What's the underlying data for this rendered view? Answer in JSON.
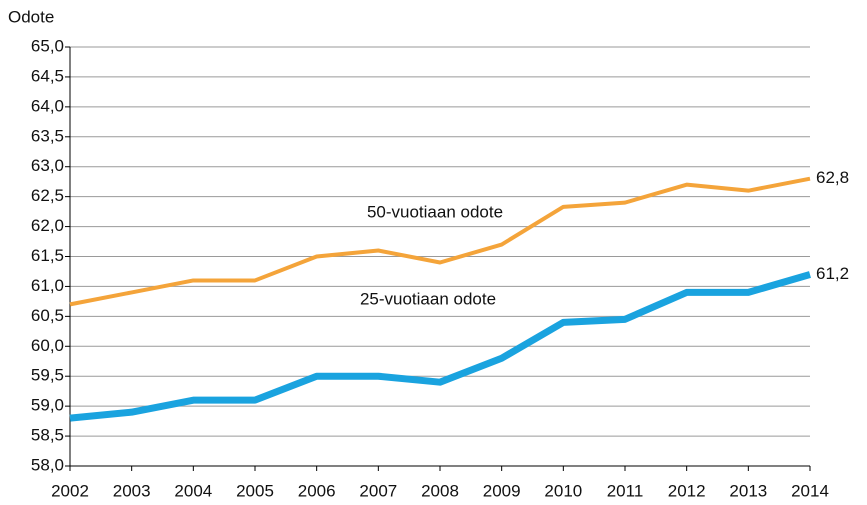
{
  "chart_data": {
    "type": "line",
    "y_label": "Odote",
    "categories": [
      "2002",
      "2003",
      "2004",
      "2005",
      "2006",
      "2007",
      "2008",
      "2009",
      "2010",
      "2011",
      "2012",
      "2013",
      "2014"
    ],
    "series": [
      {
        "name": "50-vuotiaan odote",
        "color": "#f4a43a",
        "values": [
          60.7,
          60.9,
          61.1,
          61.1,
          61.5,
          61.6,
          61.4,
          61.7,
          62.33,
          62.4,
          62.7,
          62.6,
          62.8
        ],
        "value_labels": [
          null,
          null,
          null,
          null,
          null,
          null,
          null,
          null,
          null,
          null,
          null,
          null,
          "62,8"
        ]
      },
      {
        "name": "25-vuotiaan odote",
        "color": "#1aa3df",
        "values": [
          58.8,
          58.9,
          59.1,
          59.1,
          59.5,
          59.5,
          59.4,
          59.8,
          60.4,
          60.45,
          60.9,
          60.9,
          61.2
        ],
        "value_labels": [
          null,
          null,
          null,
          null,
          null,
          null,
          null,
          null,
          null,
          null,
          null,
          null,
          "61,2"
        ]
      }
    ],
    "ylim": [
      58,
      65
    ],
    "yticks": [
      {
        "value": 58,
        "label": "58,0"
      },
      {
        "value": 58.5,
        "label": "58,5"
      },
      {
        "value": 59,
        "label": "59,0"
      },
      {
        "value": 59.5,
        "label": "59,5"
      },
      {
        "value": 60,
        "label": "60,0"
      },
      {
        "value": 60.5,
        "label": "60,5"
      },
      {
        "value": 61,
        "label": "61,0"
      },
      {
        "value": 61.5,
        "label": "61,5"
      },
      {
        "value": 62,
        "label": "62,0"
      },
      {
        "value": 62.5,
        "label": "62,5"
      },
      {
        "value": 63,
        "label": "63,0"
      },
      {
        "value": 63.5,
        "label": "63,5"
      },
      {
        "value": 64,
        "label": "64,0"
      },
      {
        "value": 64.5,
        "label": "64,5"
      },
      {
        "value": 65,
        "label": "65,0"
      }
    ],
    "grid": true
  }
}
